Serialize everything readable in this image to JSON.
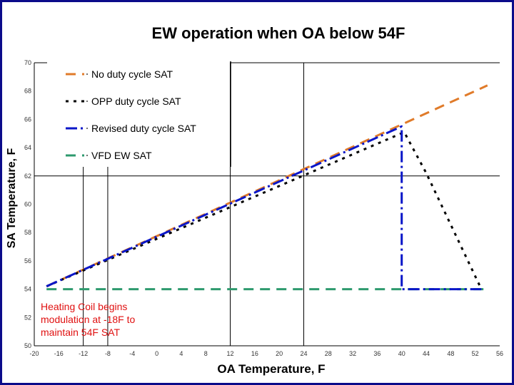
{
  "chart_data": {
    "type": "line",
    "title": "EW operation when OA below 54F",
    "xlabel": "OA Temperature, F",
    "ylabel": "SA Temperature, F",
    "xlim": [
      -20,
      56
    ],
    "ylim": [
      50,
      70
    ],
    "x_ticks": [
      "-20",
      "-16",
      "-12",
      "-8",
      "-4",
      "0",
      "4",
      "8",
      "12",
      "16",
      "20",
      "24",
      "28",
      "32",
      "36",
      "40",
      "44",
      "48",
      "52",
      "56"
    ],
    "y_ticks": [
      "50",
      "52",
      "54",
      "56",
      "58",
      "60",
      "62",
      "64",
      "66",
      "68",
      "70"
    ],
    "gridlines_x": [
      -12,
      -8,
      12,
      24
    ],
    "gridlines_y": [
      62,
      70
    ],
    "legend_position": "upper-left",
    "series": [
      {
        "name": "No duty cycle SAT",
        "color": "#e07b2a",
        "dash": "long-dash",
        "points": [
          {
            "x": -18,
            "y": 54.2
          },
          {
            "x": 54,
            "y": 68.4
          }
        ]
      },
      {
        "name": "OPP duty cycle SAT",
        "color": "#000000",
        "dash": "dot",
        "points": [
          {
            "x": -18,
            "y": 54.2
          },
          {
            "x": 40.4,
            "y": 65.1
          },
          {
            "x": 44,
            "y": 62.2
          },
          {
            "x": 53,
            "y": 54
          }
        ]
      },
      {
        "name": "Revised duty cycle SAT",
        "color": "#0a16c8",
        "dash": "dash-dot",
        "points": [
          {
            "x": -18,
            "y": 54.2
          },
          {
            "x": 40,
            "y": 65.5
          },
          {
            "x": 40,
            "y": 54
          },
          {
            "x": 53,
            "y": 54
          }
        ]
      },
      {
        "name": "VFD EW SAT",
        "color": "#2e9a6e",
        "dash": "long-dash",
        "points": [
          {
            "x": -18,
            "y": 54
          },
          {
            "x": 54,
            "y": 54
          }
        ]
      }
    ],
    "annotation": "Heating Coil begins modulation at -18F to maintain 54F SAT"
  }
}
